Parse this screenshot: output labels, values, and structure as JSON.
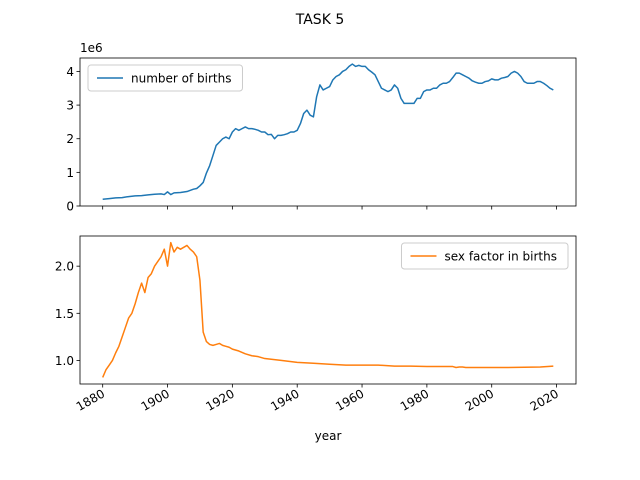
{
  "figure": {
    "title": "TASK 5"
  },
  "chart_data": [
    {
      "type": "line",
      "title": "",
      "xlabel": "",
      "ylabel": "",
      "offset_label": "1e6",
      "xlim": [
        1873,
        2026
      ],
      "ylim": [
        0,
        4.4
      ],
      "yticks": [
        0,
        1,
        2,
        3,
        4
      ],
      "ytick_labels": [
        "0",
        "1",
        "2",
        "3",
        "4"
      ],
      "grid": false,
      "legend": "top-left",
      "series": [
        {
          "name": "number of births",
          "color": "#1f77b4",
          "x": [
            1880,
            1882,
            1884,
            1886,
            1888,
            1890,
            1892,
            1894,
            1896,
            1898,
            1899,
            1900,
            1901,
            1902,
            1904,
            1906,
            1908,
            1909,
            1910,
            1911,
            1912,
            1913,
            1914,
            1915,
            1916,
            1917,
            1918,
            1919,
            1920,
            1921,
            1922,
            1923,
            1924,
            1925,
            1926,
            1927,
            1928,
            1929,
            1930,
            1931,
            1932,
            1933,
            1934,
            1935,
            1936,
            1937,
            1938,
            1939,
            1940,
            1941,
            1942,
            1943,
            1944,
            1945,
            1946,
            1947,
            1948,
            1949,
            1950,
            1951,
            1952,
            1953,
            1954,
            1955,
            1956,
            1957,
            1958,
            1959,
            1960,
            1961,
            1962,
            1963,
            1964,
            1965,
            1966,
            1967,
            1968,
            1969,
            1970,
            1971,
            1972,
            1973,
            1974,
            1975,
            1976,
            1977,
            1978,
            1979,
            1980,
            1981,
            1982,
            1983,
            1984,
            1985,
            1986,
            1987,
            1988,
            1989,
            1990,
            1991,
            1992,
            1993,
            1994,
            1995,
            1996,
            1997,
            1998,
            1999,
            2000,
            2001,
            2002,
            2003,
            2004,
            2005,
            2006,
            2007,
            2008,
            2009,
            2010,
            2011,
            2012,
            2013,
            2014,
            2015,
            2016,
            2017,
            2018,
            2019
          ],
          "y": [
            0.2,
            0.22,
            0.24,
            0.25,
            0.28,
            0.3,
            0.31,
            0.33,
            0.35,
            0.36,
            0.34,
            0.42,
            0.34,
            0.39,
            0.4,
            0.43,
            0.5,
            0.52,
            0.6,
            0.7,
            0.98,
            1.2,
            1.5,
            1.8,
            1.9,
            2.0,
            2.05,
            2.0,
            2.2,
            2.3,
            2.25,
            2.3,
            2.35,
            2.3,
            2.3,
            2.28,
            2.25,
            2.2,
            2.2,
            2.12,
            2.13,
            2.0,
            2.1,
            2.1,
            2.12,
            2.15,
            2.2,
            2.2,
            2.25,
            2.45,
            2.75,
            2.85,
            2.7,
            2.65,
            3.25,
            3.6,
            3.45,
            3.5,
            3.55,
            3.75,
            3.85,
            3.9,
            4.0,
            4.05,
            4.15,
            4.22,
            4.15,
            4.18,
            4.15,
            4.15,
            4.05,
            3.98,
            3.9,
            3.7,
            3.5,
            3.45,
            3.4,
            3.45,
            3.6,
            3.5,
            3.2,
            3.05,
            3.05,
            3.05,
            3.05,
            3.2,
            3.2,
            3.4,
            3.45,
            3.45,
            3.5,
            3.5,
            3.6,
            3.65,
            3.65,
            3.7,
            3.82,
            3.95,
            3.95,
            3.9,
            3.85,
            3.8,
            3.72,
            3.68,
            3.65,
            3.65,
            3.7,
            3.72,
            3.78,
            3.75,
            3.75,
            3.8,
            3.82,
            3.85,
            3.95,
            4.0,
            3.95,
            3.85,
            3.7,
            3.65,
            3.65,
            3.65,
            3.7,
            3.7,
            3.65,
            3.58,
            3.5,
            3.45
          ]
        }
      ]
    },
    {
      "type": "line",
      "title": "",
      "xlabel": "year",
      "ylabel": "",
      "xlim": [
        1873,
        2026
      ],
      "ylim": [
        0.75,
        2.32
      ],
      "yticks": [
        1.0,
        1.5,
        2.0
      ],
      "ytick_labels": [
        "1.0",
        "1.5",
        "2.0"
      ],
      "xticks": [
        1880,
        1900,
        1920,
        1940,
        1960,
        1980,
        2000,
        2020
      ],
      "xtick_labels": [
        "1880",
        "1900",
        "1920",
        "1940",
        "1960",
        "1980",
        "2000",
        "2020"
      ],
      "grid": false,
      "legend": "top-right",
      "series": [
        {
          "name": "sex factor in births",
          "color": "#ff7f0e",
          "x": [
            1880,
            1881,
            1882,
            1883,
            1884,
            1885,
            1886,
            1887,
            1888,
            1889,
            1890,
            1891,
            1892,
            1893,
            1894,
            1895,
            1896,
            1897,
            1898,
            1899,
            1900,
            1901,
            1902,
            1903,
            1904,
            1905,
            1906,
            1907,
            1908,
            1909,
            1910,
            1911,
            1912,
            1913,
            1914,
            1915,
            1916,
            1917,
            1918,
            1919,
            1920,
            1922,
            1924,
            1926,
            1928,
            1930,
            1935,
            1940,
            1945,
            1950,
            1955,
            1960,
            1965,
            1970,
            1975,
            1980,
            1985,
            1988,
            1989,
            1990,
            1991,
            1992,
            1995,
            2000,
            2005,
            2010,
            2015,
            2019
          ],
          "y": [
            0.82,
            0.9,
            0.95,
            1.0,
            1.08,
            1.15,
            1.25,
            1.35,
            1.45,
            1.5,
            1.6,
            1.72,
            1.82,
            1.72,
            1.88,
            1.92,
            2.0,
            2.05,
            2.1,
            2.18,
            2.0,
            2.25,
            2.15,
            2.2,
            2.18,
            2.2,
            2.22,
            2.18,
            2.15,
            2.1,
            1.85,
            1.3,
            1.2,
            1.17,
            1.16,
            1.17,
            1.18,
            1.16,
            1.15,
            1.14,
            1.12,
            1.1,
            1.07,
            1.05,
            1.04,
            1.02,
            1.0,
            0.98,
            0.97,
            0.96,
            0.95,
            0.95,
            0.95,
            0.94,
            0.94,
            0.935,
            0.935,
            0.935,
            0.925,
            0.93,
            0.93,
            0.925,
            0.925,
            0.925,
            0.925,
            0.928,
            0.93,
            0.94
          ]
        }
      ]
    }
  ]
}
